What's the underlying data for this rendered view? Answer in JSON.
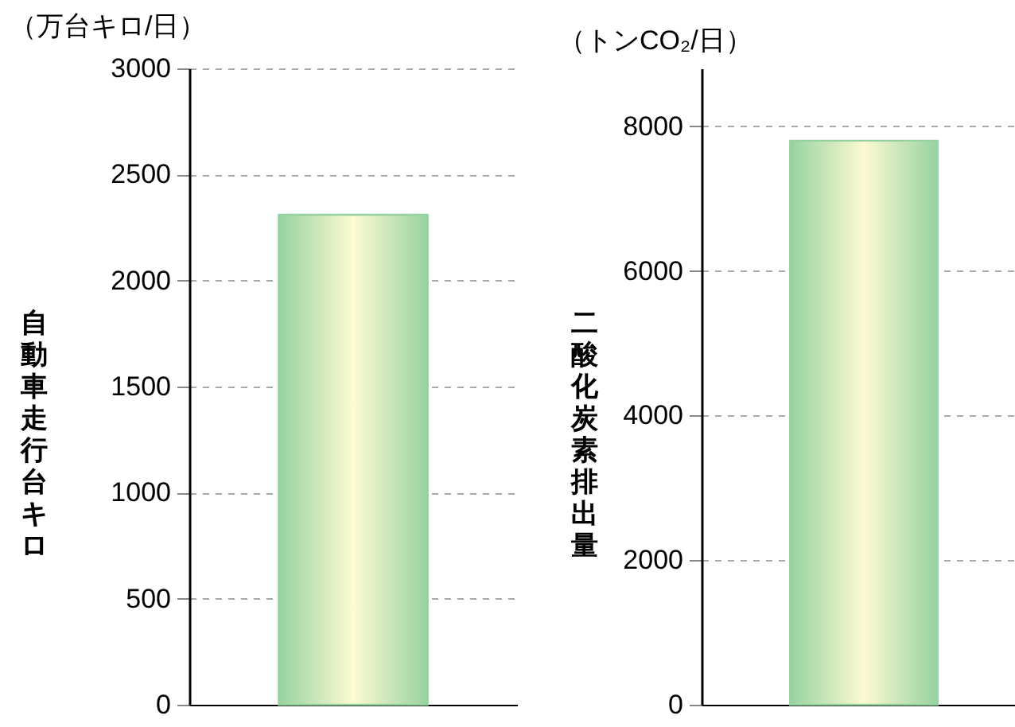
{
  "chart_data": [
    {
      "type": "bar",
      "title": "（万台キロ/日）",
      "ylabel": "自動車走行台キロ",
      "categories": [
        null
      ],
      "values": [
        2310
      ],
      "color": "#96d2a0",
      "ylim": [
        0,
        3000
      ],
      "yticks": [
        0,
        500,
        1000,
        1500,
        2000,
        2500,
        3000
      ],
      "grid": "y"
    },
    {
      "type": "bar",
      "title": "（トンCO₂/日）",
      "ylabel": "二酸化炭素排出量",
      "categories": [
        null
      ],
      "values": [
        7800
      ],
      "color": "#96d2a0",
      "ylim": [
        0,
        8800
      ],
      "yticks": [
        0,
        2000,
        4000,
        6000,
        8000
      ],
      "grid": "y"
    }
  ]
}
